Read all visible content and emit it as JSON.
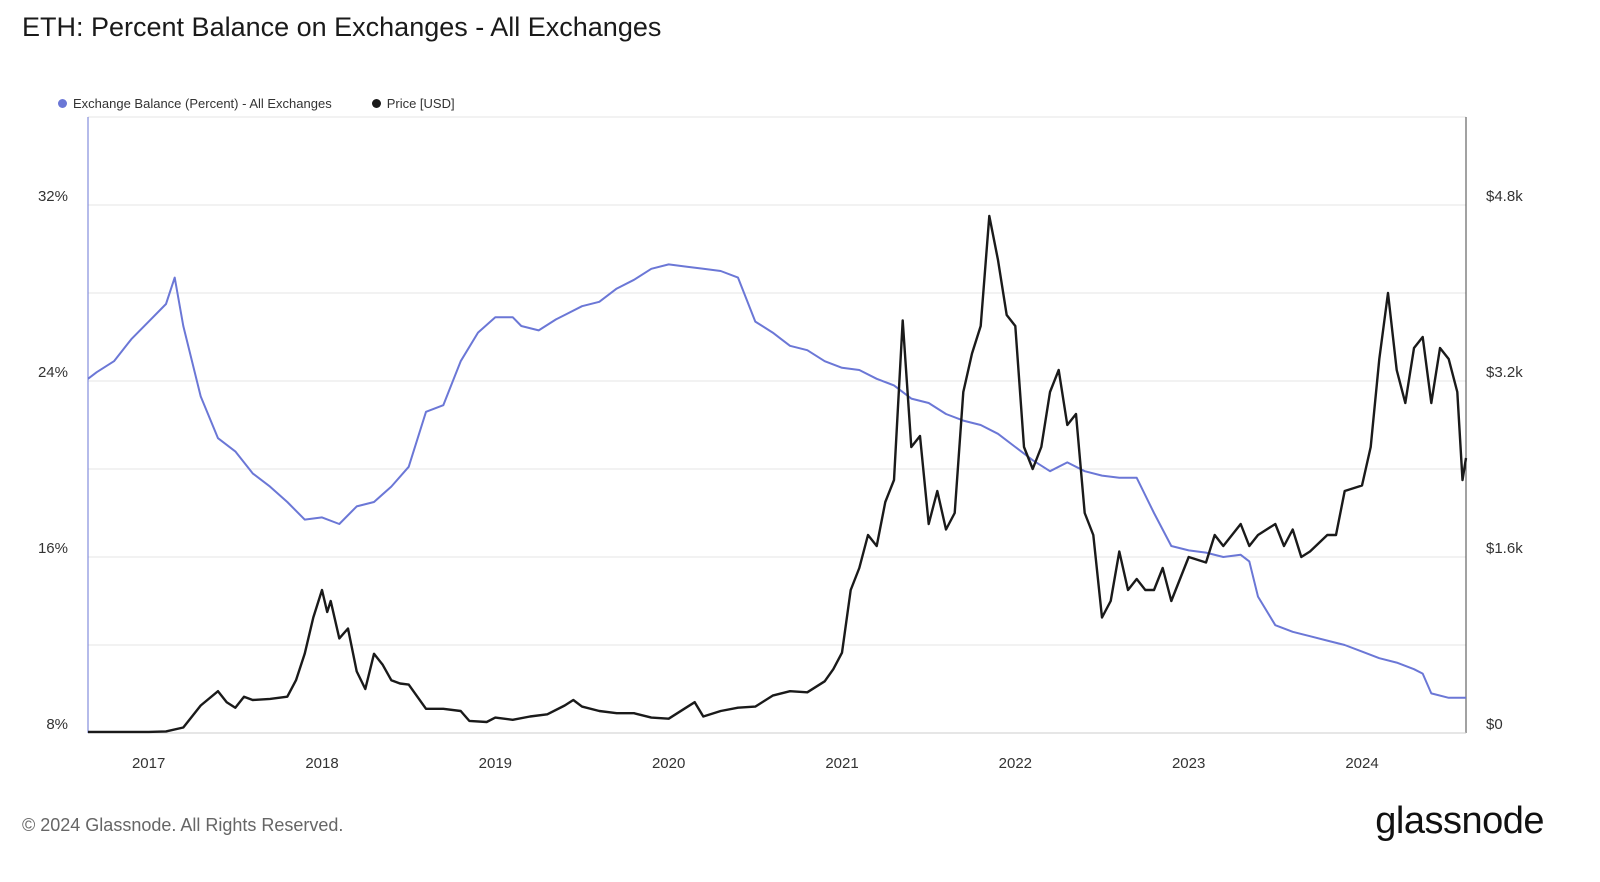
{
  "title": "ETH: Percent Balance on Exchanges - All Exchanges",
  "legend": [
    {
      "label": "Exchange Balance (Percent) - All Exchanges",
      "color": "#6b77d6"
    },
    {
      "label": "Price [USD]",
      "color": "#1a1a1a"
    }
  ],
  "footer": "© 2024 Glassnode. All Rights Reserved.",
  "brand": "glassnode",
  "chart_data": {
    "type": "line",
    "xlim": [
      2016.65,
      2024.6
    ],
    "x_ticks": [
      2017,
      2018,
      2019,
      2020,
      2021,
      2022,
      2023,
      2024
    ],
    "x_tick_labels": [
      "2017",
      "2018",
      "2019",
      "2020",
      "2021",
      "2022",
      "2023",
      "2024"
    ],
    "y_left": {
      "lim": [
        8,
        36
      ],
      "ticks": [
        8,
        16,
        24,
        32
      ],
      "tick_labels": [
        "8%",
        "16%",
        "24%",
        "32%"
      ]
    },
    "y_right": {
      "lim": [
        0,
        5600
      ],
      "ticks": [
        0,
        1600,
        3200,
        4800
      ],
      "tick_labels": [
        "$0",
        "$1.6k",
        "$3.2k",
        "$4.8k"
      ]
    },
    "grid": true,
    "series": [
      {
        "name": "Exchange Balance (Percent) - All Exchanges",
        "axis": "left",
        "color": "#6b77d6",
        "x": [
          2016.65,
          2016.7,
          2016.8,
          2016.9,
          2017.0,
          2017.1,
          2017.15,
          2017.2,
          2017.3,
          2017.4,
          2017.5,
          2017.6,
          2017.7,
          2017.8,
          2017.9,
          2018.0,
          2018.1,
          2018.2,
          2018.3,
          2018.4,
          2018.5,
          2018.6,
          2018.7,
          2018.8,
          2018.9,
          2019.0,
          2019.1,
          2019.15,
          2019.25,
          2019.35,
          2019.4,
          2019.5,
          2019.6,
          2019.7,
          2019.8,
          2019.9,
          2020.0,
          2020.1,
          2020.2,
          2020.3,
          2020.4,
          2020.5,
          2020.6,
          2020.65,
          2020.7,
          2020.8,
          2020.9,
          2021.0,
          2021.1,
          2021.2,
          2021.3,
          2021.4,
          2021.5,
          2021.6,
          2021.7,
          2021.8,
          2021.9,
          2022.0,
          2022.1,
          2022.2,
          2022.3,
          2022.4,
          2022.5,
          2022.6,
          2022.7,
          2022.8,
          2022.9,
          2023.0,
          2023.1,
          2023.2,
          2023.3,
          2023.35,
          2023.4,
          2023.5,
          2023.6,
          2023.7,
          2023.8,
          2023.9,
          2024.0,
          2024.1,
          2024.2,
          2024.3,
          2024.35,
          2024.4,
          2024.5,
          2024.6
        ],
        "values": [
          24.1,
          24.4,
          24.9,
          25.9,
          26.7,
          27.5,
          28.7,
          26.5,
          23.3,
          21.4,
          20.8,
          19.8,
          19.2,
          18.5,
          17.7,
          17.8,
          17.5,
          18.3,
          18.5,
          19.2,
          20.1,
          22.6,
          22.9,
          24.9,
          26.2,
          26.9,
          26.9,
          26.5,
          26.3,
          26.8,
          27.0,
          27.4,
          27.6,
          28.2,
          28.6,
          29.1,
          29.3,
          29.2,
          29.1,
          29.0,
          28.7,
          26.7,
          26.2,
          25.9,
          25.6,
          25.4,
          24.9,
          24.6,
          24.5,
          24.1,
          23.8,
          23.2,
          23.0,
          22.5,
          22.2,
          22.0,
          21.6,
          21.0,
          20.4,
          19.9,
          20.3,
          19.9,
          19.7,
          19.6,
          19.6,
          18.0,
          16.5,
          16.3,
          16.2,
          16.0,
          16.1,
          15.8,
          14.2,
          12.9,
          12.6,
          12.4,
          12.2,
          12.0,
          11.7,
          11.4,
          11.2,
          10.9,
          10.7,
          9.8,
          9.6,
          9.6
        ]
      },
      {
        "name": "Price [USD]",
        "axis": "right",
        "color": "#1a1a1a",
        "x": [
          2016.65,
          2016.8,
          2017.0,
          2017.1,
          2017.2,
          2017.3,
          2017.4,
          2017.45,
          2017.5,
          2017.55,
          2017.6,
          2017.7,
          2017.8,
          2017.85,
          2017.9,
          2017.95,
          2018.0,
          2018.03,
          2018.05,
          2018.1,
          2018.15,
          2018.2,
          2018.25,
          2018.3,
          2018.35,
          2018.4,
          2018.45,
          2018.5,
          2018.6,
          2018.7,
          2018.8,
          2018.85,
          2018.95,
          2019.0,
          2019.1,
          2019.2,
          2019.3,
          2019.4,
          2019.45,
          2019.5,
          2019.6,
          2019.7,
          2019.8,
          2019.9,
          2020.0,
          2020.1,
          2020.15,
          2020.2,
          2020.3,
          2020.4,
          2020.5,
          2020.6,
          2020.7,
          2020.8,
          2020.9,
          2020.95,
          2021.0,
          2021.05,
          2021.1,
          2021.15,
          2021.2,
          2021.25,
          2021.3,
          2021.35,
          2021.4,
          2021.45,
          2021.5,
          2021.55,
          2021.6,
          2021.65,
          2021.7,
          2021.75,
          2021.8,
          2021.85,
          2021.9,
          2021.95,
          2022.0,
          2022.05,
          2022.1,
          2022.15,
          2022.2,
          2022.25,
          2022.3,
          2022.35,
          2022.4,
          2022.45,
          2022.5,
          2022.55,
          2022.6,
          2022.65,
          2022.7,
          2022.75,
          2022.8,
          2022.85,
          2022.9,
          2023.0,
          2023.1,
          2023.15,
          2023.2,
          2023.3,
          2023.35,
          2023.4,
          2023.5,
          2023.55,
          2023.6,
          2023.65,
          2023.7,
          2023.8,
          2023.85,
          2023.9,
          2024.0,
          2024.05,
          2024.1,
          2024.15,
          2024.2,
          2024.25,
          2024.3,
          2024.35,
          2024.4,
          2024.45,
          2024.5,
          2024.55,
          2024.58,
          2024.6
        ],
        "values": [
          10,
          10,
          10,
          15,
          50,
          250,
          380,
          280,
          230,
          330,
          300,
          310,
          330,
          480,
          720,
          1050,
          1300,
          1100,
          1200,
          860,
          950,
          560,
          400,
          720,
          620,
          480,
          450,
          440,
          220,
          220,
          200,
          110,
          100,
          140,
          120,
          150,
          170,
          250,
          300,
          240,
          200,
          180,
          180,
          140,
          130,
          230,
          280,
          150,
          200,
          230,
          240,
          340,
          380,
          370,
          470,
          580,
          730,
          1300,
          1500,
          1800,
          1700,
          2100,
          2300,
          3750,
          2600,
          2700,
          1900,
          2200,
          1850,
          2000,
          3100,
          3450,
          3700,
          4700,
          4300,
          3800,
          3700,
          2600,
          2400,
          2600,
          3100,
          3300,
          2800,
          2900,
          2000,
          1800,
          1050,
          1200,
          1650,
          1300,
          1400,
          1300,
          1300,
          1500,
          1200,
          1600,
          1550,
          1800,
          1700,
          1900,
          1700,
          1800,
          1900,
          1700,
          1850,
          1600,
          1650,
          1800,
          1800,
          2200,
          2250,
          2600,
          3400,
          4000,
          3300,
          3000,
          3500,
          3600,
          3000,
          3500,
          3400,
          3100,
          2300,
          2500
        ]
      }
    ]
  }
}
